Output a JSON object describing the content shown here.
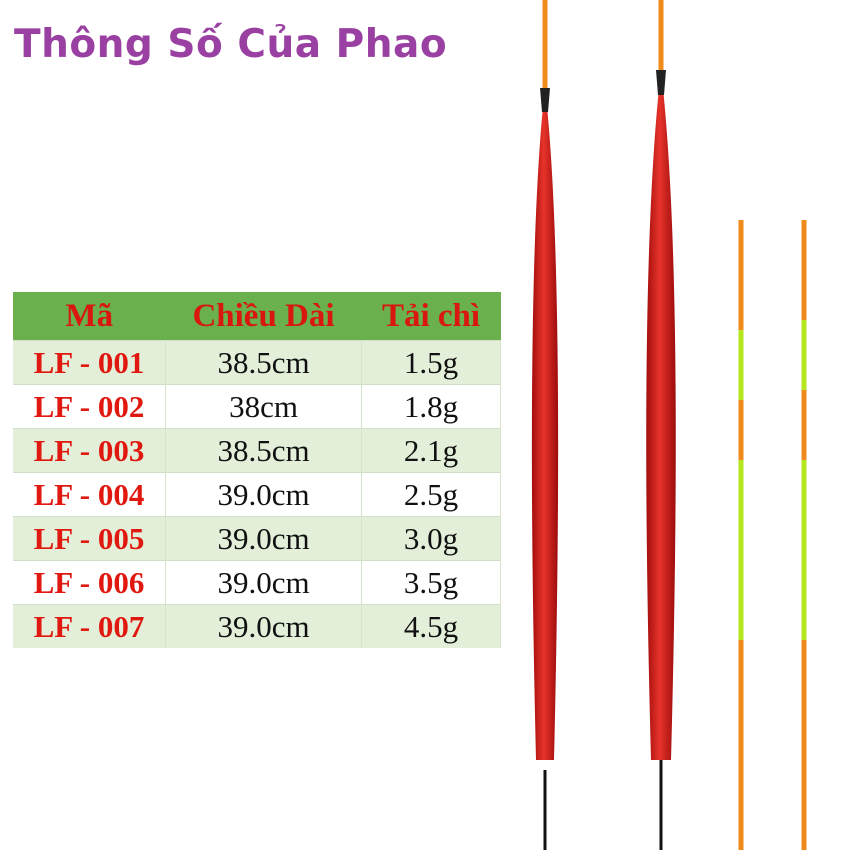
{
  "title": "Thông Số Của Phao",
  "table": {
    "headers": [
      "Mã",
      "Chiều Dài",
      "Tải chì"
    ],
    "rows": [
      {
        "code": "LF - 001",
        "length": "38.5cm",
        "weight": "1.5g"
      },
      {
        "code": "LF - 002",
        "length": "38cm",
        "weight": "1.8g"
      },
      {
        "code": "LF - 003",
        "length": "38.5cm",
        "weight": "2.1g"
      },
      {
        "code": "LF - 004",
        "length": "39.0cm",
        "weight": "2.5g"
      },
      {
        "code": "LF - 005",
        "length": "39.0cm",
        "weight": "3.0g"
      },
      {
        "code": "LF - 006",
        "length": "39.0cm",
        "weight": "3.5g"
      },
      {
        "code": "LF - 007",
        "length": "39.0cm",
        "weight": "4.5g"
      }
    ]
  },
  "colors": {
    "title": "#9a40a2",
    "header_bg": "#6ab04c",
    "code_text": "#e0180f",
    "float_body": "#d8201c"
  }
}
